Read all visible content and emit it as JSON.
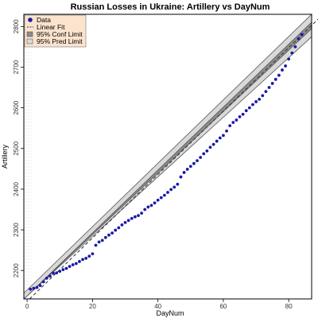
{
  "chart_data": {
    "type": "scatter",
    "title": "Russian Losses in Ukraine: Artillery vs DayNum",
    "xlabel": "DayNum",
    "ylabel": "Artillery",
    "xlim": [
      -1,
      87
    ],
    "ylim": [
      2130,
      2830
    ],
    "xticks": [
      0,
      20,
      40,
      60,
      80
    ],
    "yticks": [
      2200,
      2300,
      2400,
      2500,
      2600,
      2700,
      2800
    ],
    "x": [
      1,
      2,
      3,
      4,
      5,
      6,
      7,
      8,
      9,
      10,
      11,
      12,
      13,
      14,
      15,
      16,
      17,
      18,
      19,
      20,
      21,
      22,
      23,
      24,
      25,
      26,
      27,
      28,
      29,
      30,
      31,
      32,
      33,
      34,
      35,
      36,
      37,
      38,
      39,
      40,
      41,
      42,
      43,
      44,
      45,
      46,
      47,
      48,
      49,
      50,
      51,
      52,
      53,
      54,
      55,
      56,
      57,
      58,
      59,
      60,
      61,
      62,
      63,
      64,
      65,
      66,
      67,
      68,
      69,
      70,
      71,
      72,
      73,
      74,
      75,
      76,
      77,
      78,
      79,
      80,
      81,
      82,
      83,
      84
    ],
    "y": [
      2154,
      2156,
      2158,
      2163,
      2172,
      2181,
      2186,
      2193,
      2194,
      2198,
      2202,
      2205,
      2210,
      2214,
      2217,
      2222,
      2227,
      2230,
      2235,
      2241,
      2262,
      2270,
      2274,
      2281,
      2287,
      2292,
      2299,
      2305,
      2312,
      2318,
      2323,
      2328,
      2332,
      2335,
      2341,
      2350,
      2356,
      2360,
      2366,
      2373,
      2379,
      2385,
      2392,
      2399,
      2405,
      2412,
      2430,
      2441,
      2449,
      2456,
      2463,
      2470,
      2478,
      2487,
      2494,
      2503,
      2510,
      2518,
      2526,
      2532,
      2543,
      2556,
      2564,
      2570,
      2578,
      2584,
      2593,
      2600,
      2608,
      2615,
      2621,
      2630,
      2640,
      2650,
      2660,
      2670,
      2680,
      2693,
      2703,
      2720,
      2735,
      2750,
      2770,
      2780
    ],
    "fit": {
      "slope": 7.8,
      "intercept": 2124
    },
    "conf_halfwidth": 8,
    "pred_halfwidth": 28,
    "legend": {
      "placement": "top-left",
      "entries": [
        "Data",
        "Linear Fit",
        "95% Conf Limit",
        "95% Pred Limit"
      ]
    },
    "colors": {
      "data": "#1a1aa6",
      "fit": "#333333",
      "conf": "#8c8c8c",
      "pred": "#d9d9d9",
      "legend_bg": "#fbe3cd"
    }
  }
}
